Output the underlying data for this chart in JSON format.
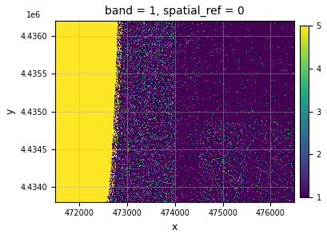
{
  "title": "band = 1, spatial_ref = 0",
  "xlabel": "x",
  "ylabel": "y",
  "xmin": 471500,
  "xmax": 476500,
  "ymin": 4433800,
  "ymax": 4436200,
  "x_ticks": [
    472000,
    473000,
    474000,
    475000,
    476000
  ],
  "y_ticks": [
    4434000,
    4434500,
    4435000,
    4435500,
    4436000
  ],
  "cmap": "viridis",
  "vmin": 1,
  "vmax": 5,
  "colorbar_ticks": [
    1,
    2,
    3,
    4,
    5
  ],
  "grid_color": "#aaaaaa",
  "figsize": [
    4.1,
    2.98
  ],
  "dpi": 100,
  "seed": 42,
  "nx": 500,
  "ny": 240,
  "nodata_value": 5,
  "dominant_value": 1,
  "title_fontsize": 10,
  "label_fontsize": 9,
  "tick_fontsize": 7
}
